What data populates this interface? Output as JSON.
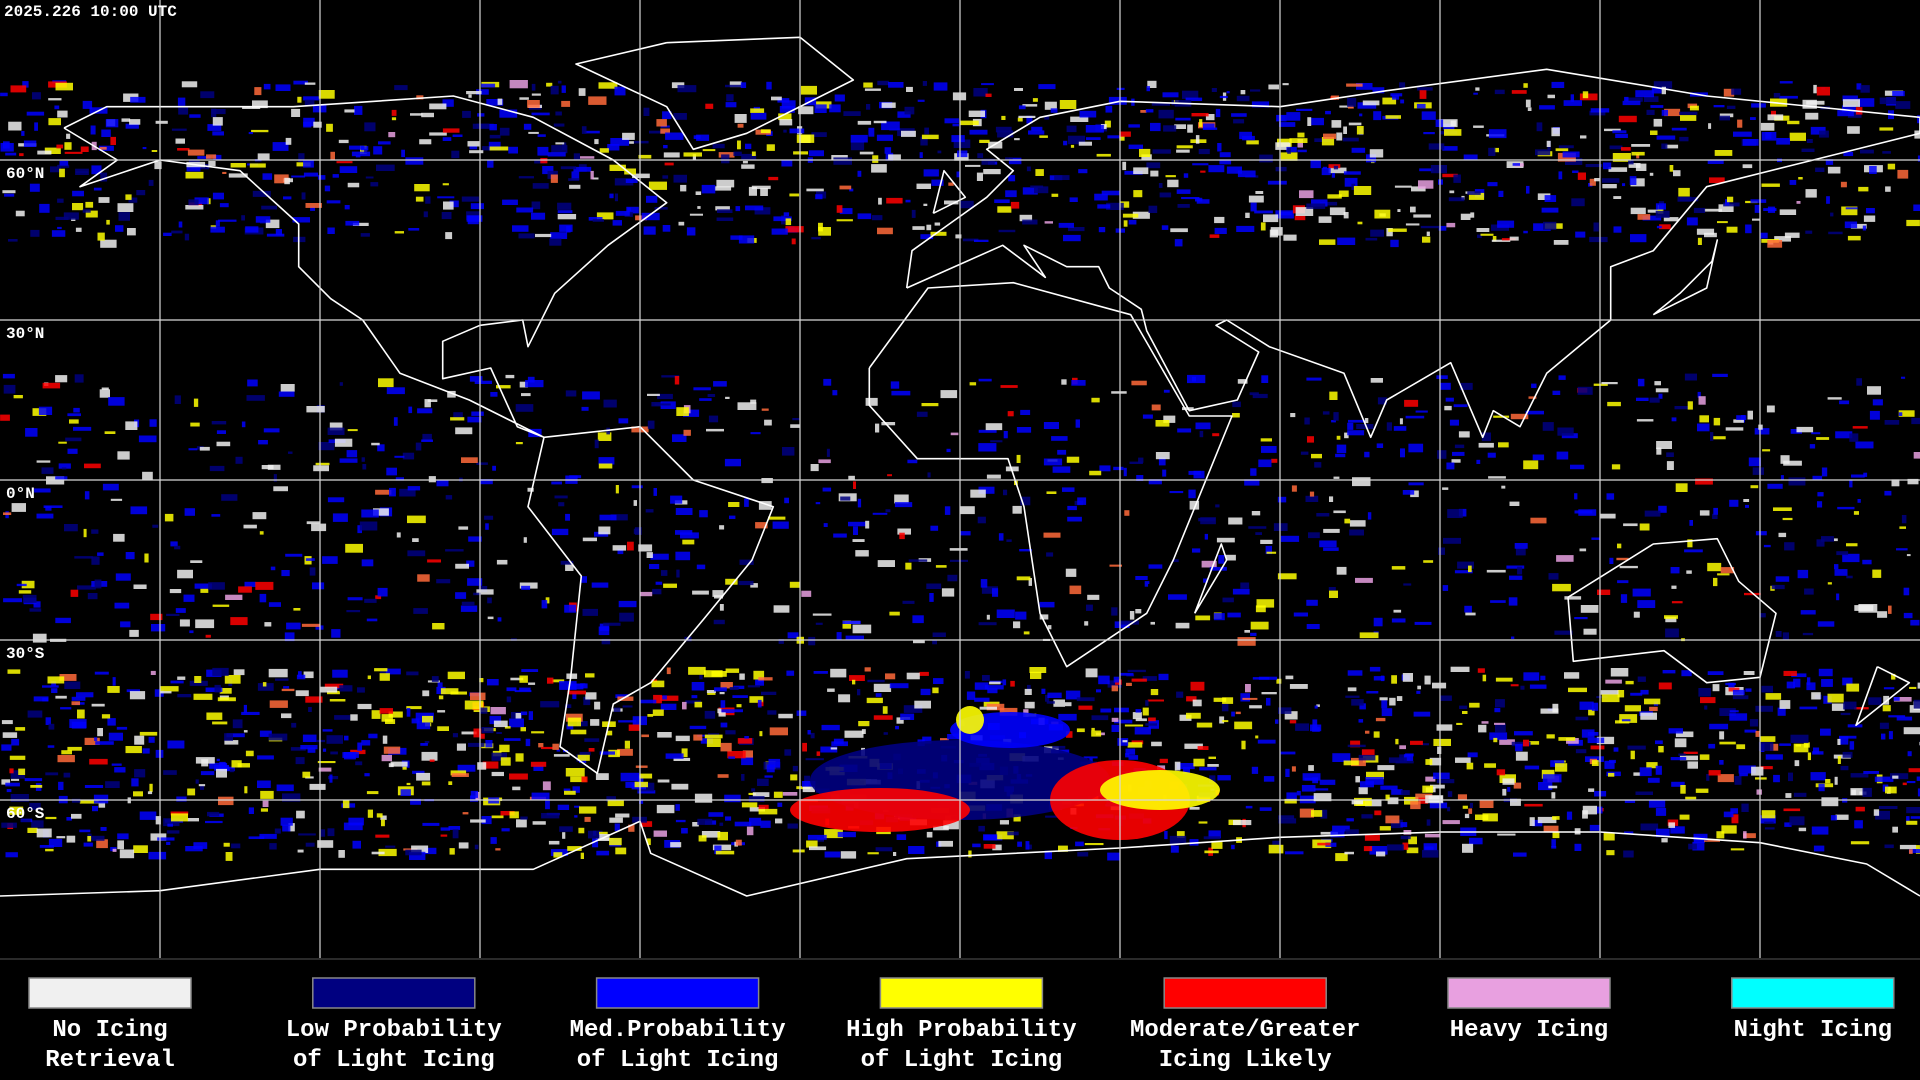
{
  "timestamp": "2025.226 10:00 UTC",
  "latitude_labels": [
    "60°N",
    "30°N",
    "0°N",
    "30°S",
    "60°S"
  ],
  "legend": [
    {
      "label_lines": [
        "No Icing",
        "Retrieval"
      ],
      "color": "#f0f0f0"
    },
    {
      "label_lines": [
        "Low Probability",
        "of Light Icing"
      ],
      "color": "#000080"
    },
    {
      "label_lines": [
        "Med.Probability",
        "of Light Icing"
      ],
      "color": "#0000ff"
    },
    {
      "label_lines": [
        "High Probability",
        "of Light Icing"
      ],
      "color": "#ffff00"
    },
    {
      "label_lines": [
        "Moderate/Greater",
        "Icing Likely"
      ],
      "color": "#ff0000"
    },
    {
      "label_lines": [
        "Heavy Icing"
      ],
      "color": "#e8a0e0"
    },
    {
      "label_lines": [
        "Night Icing"
      ],
      "color": "#00ffff"
    }
  ]
}
